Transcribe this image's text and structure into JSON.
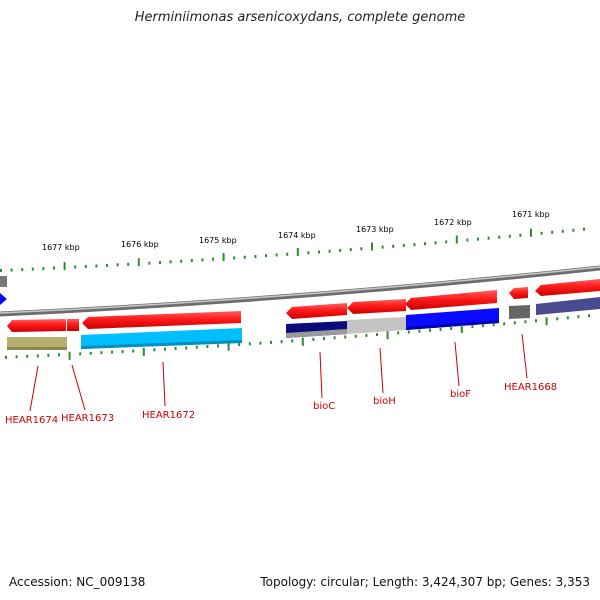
{
  "title": "Herminiimonas arsenicoxydans, complete genome",
  "accession": "Accession: NC_009138",
  "summary": "Topology: circular; Length: 3,424,307 bp; Genes: 3,353",
  "ruler_labels": [
    "1677 kbp",
    "1676 kbp",
    "1675 kbp",
    "1674 kbp",
    "1673 kbp",
    "1672 kbp",
    "1671 kbp"
  ],
  "gene_labels": [
    "HEAR1674",
    "HEAR1673",
    "HEAR1672",
    "bioC",
    "bioH",
    "bioF",
    "HEAR1668"
  ],
  "colors": {
    "forward_strand": "#ff1a1a",
    "backbone": "#8a8a8a",
    "ruler_ticks": "#2e8b2e",
    "label_text": "#cc0000",
    "cog_olive": "#b5b070",
    "cog_cyan": "#00bfff",
    "cog_navy": "#0b0b7a",
    "cog_lightgray": "#c4c4c4",
    "cog_blue": "#0a0aff",
    "cog_darkgray": "#666666",
    "cog_slate": "#4a4a90"
  }
}
